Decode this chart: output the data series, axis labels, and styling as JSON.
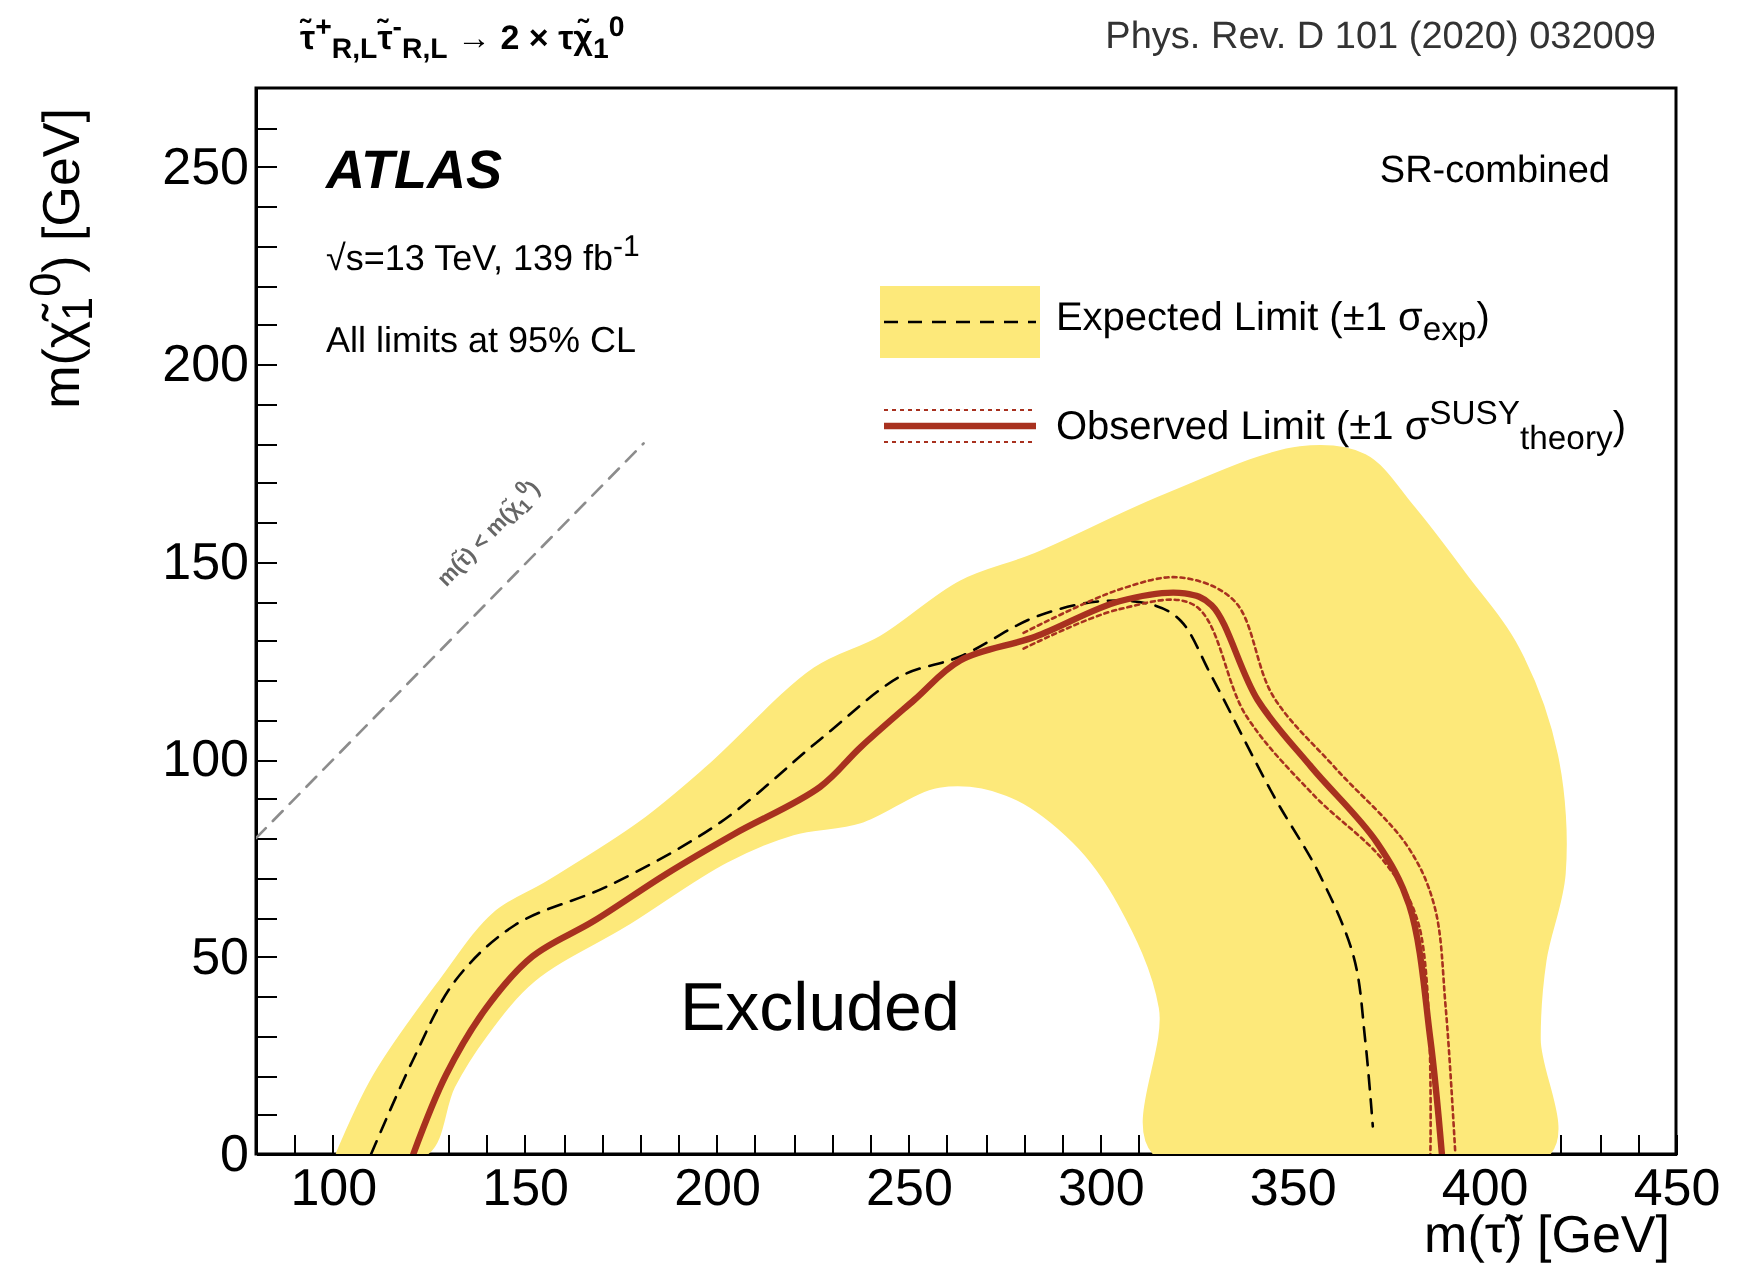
{
  "chart_data": {
    "type": "line",
    "title": "τ̃$^{+}$$_{R,L}$τ̃$^{-}$$_{R,L}$ → 2 × τχ̃$_{1}$$^{0}$",
    "xlabel": "m(τ̃) [GeV]",
    "ylabel": "m(χ̃$_{1}$$^{0}$) [GeV]",
    "annotations": [
      "Phys. Rev. D 101 (2020) 032009",
      "ATLAS",
      "√s=13 TeV, 139 fb$^{-1}$",
      "All limits at 95% CL",
      "SR-combined",
      "Excluded",
      "m(τ̃) < m(χ̃$_{1}$$^{0}$)"
    ],
    "xlim": [
      80,
      450
    ],
    "xticks": [
      {
        "value": 90,
        "label": null
      },
      100,
      {
        "value": 110,
        "label": null
      },
      {
        "value": 120,
        "label": null
      },
      {
        "value": 130,
        "label": null
      },
      {
        "value": 140,
        "label": null
      },
      150,
      {
        "value": 160,
        "label": null
      },
      {
        "value": 170,
        "label": null
      },
      {
        "value": 180,
        "label": null
      },
      {
        "value": 190,
        "label": null
      },
      200,
      {
        "value": 210,
        "label": null
      },
      {
        "value": 220,
        "label": null
      },
      {
        "value": 230,
        "label": null
      },
      {
        "value": 240,
        "label": null
      },
      250,
      {
        "value": 260,
        "label": null
      },
      {
        "value": 270,
        "label": null
      },
      {
        "value": 280,
        "label": null
      },
      {
        "value": 290,
        "label": null
      },
      300,
      {
        "value": 310,
        "label": null
      },
      {
        "value": 320,
        "label": null
      },
      {
        "value": 330,
        "label": null
      },
      {
        "value": 340,
        "label": null
      },
      350,
      {
        "value": 360,
        "label": null
      },
      {
        "value": 370,
        "label": null
      },
      {
        "value": 380,
        "label": null
      },
      {
        "value": 390,
        "label": null
      },
      400,
      {
        "value": 410,
        "label": null
      },
      {
        "value": 420,
        "label": null
      },
      {
        "value": 430,
        "label": null
      },
      {
        "value": 440,
        "label": null
      },
      450
    ],
    "ylim": [
      0,
      270
    ],
    "yticks": [
      0,
      {
        "value": 10,
        "label": null
      },
      {
        "value": 20,
        "label": null
      },
      {
        "value": 30,
        "label": null
      },
      {
        "value": 40,
        "label": null
      },
      50,
      {
        "value": 60,
        "label": null
      },
      {
        "value": 70,
        "label": null
      },
      {
        "value": 80,
        "label": null
      },
      {
        "value": 90,
        "label": null
      },
      100,
      {
        "value": 110,
        "label": null
      },
      {
        "value": 120,
        "label": null
      },
      {
        "value": 130,
        "label": null
      },
      {
        "value": 140,
        "label": null
      },
      150,
      {
        "value": 160,
        "label": null
      },
      {
        "value": 170,
        "label": null
      },
      {
        "value": 180,
        "label": null
      },
      {
        "value": 190,
        "label": null
      },
      200,
      {
        "value": 210,
        "label": null
      },
      {
        "value": 220,
        "label": null
      },
      {
        "value": 230,
        "label": null
      },
      {
        "value": 240,
        "label": null
      },
      250,
      {
        "value": 260,
        "label": null
      }
    ],
    "grid": false,
    "legend": "top right",
    "marker": "none",
    "series": [
      {
        "type": "area",
        "color": "#fde97a",
        "x": [
          101,
          110.8,
          128,
          142,
          156,
          180,
          197.5,
          225.5,
          242.7,
          263.5,
          283,
          317,
          352,
          369,
          381.5,
          395,
          409,
          419,
          421,
          416,
          414.5,
          417,
          314,
          315.5,
          305,
          293,
          275.5,
          258,
          237.5,
          220,
          202.6,
          176.6,
          152.6,
          140,
          131.6,
          124.5,
          101
        ],
        "values": [
          0,
          20,
          44,
          61,
          69,
          84,
          98,
          123,
          131,
          145,
          152,
          167,
          179,
          177,
          164,
          147,
          128,
          101,
          71,
          49,
          29,
          0,
          0,
          37,
          63,
          79,
          91,
          93,
          84,
          81,
          74,
          58,
          44,
          30,
          17,
          0,
          0
        ]
      },
      {
        "type": "line",
        "color": "#8c8c8c",
        "line_style": "dashed",
        "x": [
          80,
          181
        ],
        "values": [
          80,
          180
        ]
      },
      {
        "type": "line",
        "name": "Expected Limit (±1 σ$_{exp}$)",
        "color": "#000000",
        "line_style": "dashed",
        "x": [
          110,
          121,
          132,
          147.5,
          172,
          201,
          227,
          248,
          263.5,
          283,
          300,
          314,
          321,
          329,
          345,
          357,
          366,
          369,
          371
        ],
        "values": [
          0,
          24,
          44,
          58,
          68,
          84,
          105,
          121,
          126,
          136,
          140,
          139,
          135,
          121,
          91,
          71,
          50,
          29,
          7
        ]
      },
      {
        "type": "line",
        "color": "#a8311f",
        "line_style": "dotted",
        "x": [
          280,
          305,
          321,
          335,
          345,
          361,
          380,
          387,
          390,
          392.5
        ],
        "values": [
          132,
          143,
          146,
          140,
          116,
          98,
          78,
          63,
          37,
          0
        ]
      },
      {
        "type": "line",
        "color": "#a8311f",
        "line_style": "dotted",
        "x": [
          280,
          305,
          324.5,
          338,
          355.5,
          374,
          383,
          386
        ],
        "values": [
          128,
          138,
          139,
          111,
          91,
          74,
          58,
          0
        ]
      },
      {
        "type": "line",
        "name": "Observed Limit (±1 σ$^{SUSY}$$_{theory}$)",
        "color": "#a8311f",
        "line_style": "solid",
        "x": [
          121,
          129.5,
          140,
          152,
          168,
          187,
          204.5,
          227,
          237.5,
          251.5,
          263.5,
          283,
          305,
          322,
          329,
          341,
          355,
          372,
          380.5,
          386,
          389
        ],
        "values": [
          0,
          20,
          37,
          50,
          59,
          71,
          81,
          93,
          103,
          115,
          125,
          131,
          140,
          142,
          139,
          115,
          98,
          79,
          63,
          29,
          0
        ]
      }
    ]
  }
}
